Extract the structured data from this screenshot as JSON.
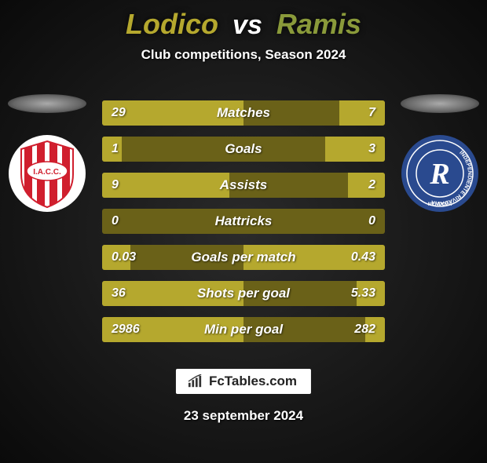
{
  "header": {
    "player1": "Lodico",
    "vs": "vs",
    "player2": "Ramis",
    "subtitle": "Club competitions, Season 2024",
    "player1_color": "#b5a82e",
    "player2_color": "#8a9a3a"
  },
  "team_left": {
    "name": "iacc-logo",
    "bg_color": "#ffffff",
    "stripe_color": "#d01f2e",
    "text": "I.A.C.C."
  },
  "team_right": {
    "name": "independiente-rivadavia-logo",
    "bg_color": "#2a4a8f",
    "inner_color": "#ffffff",
    "ring_text": "INDEPENDIENTE RIVADAVIA",
    "ring_text2": "MENDOZA",
    "letter": "R"
  },
  "bars": {
    "bg_color": "#6a6118",
    "fill_color": "#b5a82e",
    "rows": [
      {
        "label": "Matches",
        "left_val": "29",
        "right_val": "7",
        "left_pct": 50,
        "right_pct": 16
      },
      {
        "label": "Goals",
        "left_val": "1",
        "right_val": "3",
        "left_pct": 7,
        "right_pct": 21
      },
      {
        "label": "Assists",
        "left_val": "9",
        "right_val": "2",
        "left_pct": 45,
        "right_pct": 13
      },
      {
        "label": "Hattricks",
        "left_val": "0",
        "right_val": "0",
        "left_pct": 0,
        "right_pct": 0
      },
      {
        "label": "Goals per match",
        "left_val": "0.03",
        "right_val": "0.43",
        "left_pct": 10,
        "right_pct": 50
      },
      {
        "label": "Shots per goal",
        "left_val": "36",
        "right_val": "5.33",
        "left_pct": 50,
        "right_pct": 10
      },
      {
        "label": "Min per goal",
        "left_val": "2986",
        "right_val": "282",
        "left_pct": 50,
        "right_pct": 7
      }
    ]
  },
  "footer": {
    "brand": "FcTables.com",
    "date": "23 september 2024"
  }
}
